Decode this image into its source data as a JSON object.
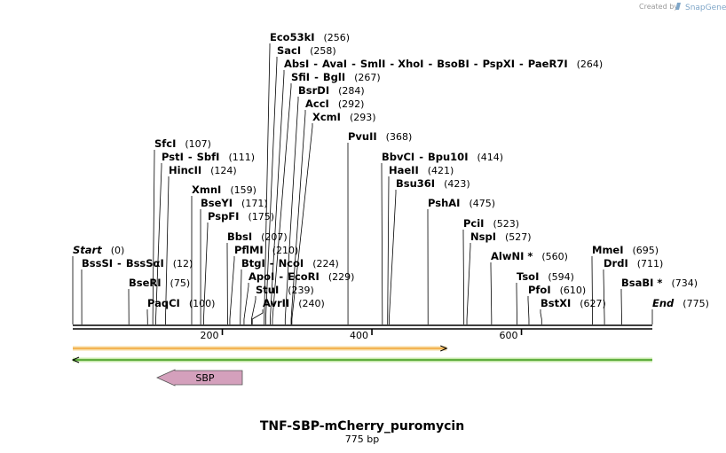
{
  "credit": {
    "prefix": "Created by",
    "brand": "SnapGene"
  },
  "title": "TNF-SBP-mCherry_puromycin",
  "subtitle": "775 bp",
  "sequence_length": 775,
  "ruler": {
    "ticks": [
      200,
      400,
      600
    ]
  },
  "features": [
    {
      "name": "SBP",
      "start": 120,
      "end": 230,
      "direction": "reverse",
      "color": "#d4a0bc"
    }
  ],
  "ranges": [
    {
      "name": "orange-range",
      "start": 1,
      "end": 500,
      "direction": "forward",
      "color": "#f2a73b",
      "fill": "#f7dca3"
    },
    {
      "name": "green-range",
      "start": 1,
      "end": 775,
      "direction": "reverse",
      "color": "#3e9a1e",
      "fill": "#c6e8a8"
    }
  ],
  "sites": [
    {
      "group": "start",
      "names": [
        "Start"
      ],
      "pos_label": "(0)",
      "cut": 0,
      "italic": true
    },
    {
      "group": "bsssi",
      "names": [
        "BssSI",
        "BssSαI"
      ],
      "pos_label": "(12)",
      "cut": 12
    },
    {
      "group": "bseri",
      "names": [
        "BseRI"
      ],
      "pos_label": "(75)",
      "cut": 75
    },
    {
      "group": "paqci",
      "names": [
        "PaqCI"
      ],
      "pos_label": "(100)",
      "cut": 100
    },
    {
      "group": "sfci",
      "names": [
        "SfcI"
      ],
      "pos_label": "(107)",
      "cut": 107
    },
    {
      "group": "psti",
      "names": [
        "PstI",
        "SbfI"
      ],
      "pos_label": "(111)",
      "cut": 111
    },
    {
      "group": "hincii",
      "names": [
        "HincII"
      ],
      "pos_label": "(124)",
      "cut": 124
    },
    {
      "group": "xmni",
      "names": [
        "XmnI"
      ],
      "pos_label": "(159)",
      "cut": 159
    },
    {
      "group": "bseyi",
      "names": [
        "BseYI"
      ],
      "pos_label": "(171)",
      "cut": 171
    },
    {
      "group": "pspfi",
      "names": [
        "PspFI"
      ],
      "pos_label": "(175)",
      "cut": 175
    },
    {
      "group": "bbsi",
      "names": [
        "BbsI"
      ],
      "pos_label": "(207)",
      "cut": 207
    },
    {
      "group": "pflmi",
      "names": [
        "PflMI"
      ],
      "pos_label": "(210)",
      "cut": 210
    },
    {
      "group": "btgi",
      "names": [
        "BtgI",
        "NcoI"
      ],
      "pos_label": "(224)",
      "cut": 224
    },
    {
      "group": "apoi",
      "names": [
        "ApoI",
        "EcoRI"
      ],
      "pos_label": "(229)",
      "cut": 229
    },
    {
      "group": "stui",
      "names": [
        "StuI"
      ],
      "pos_label": "(239)",
      "cut": 239
    },
    {
      "group": "avrii",
      "names": [
        "AvrII"
      ],
      "pos_label": "(240)",
      "cut": 240
    },
    {
      "group": "eco53ki",
      "names": [
        "Eco53kI"
      ],
      "pos_label": "(256)",
      "cut": 256
    },
    {
      "group": "saci",
      "names": [
        "SacI"
      ],
      "pos_label": "(258)",
      "cut": 258
    },
    {
      "group": "absi",
      "names": [
        "AbsI",
        "AvaI",
        "SmlI",
        "XhoI",
        "BsoBI",
        "PspXI",
        "PaeR7I"
      ],
      "pos_label": "(264)",
      "cut": 264
    },
    {
      "group": "sfii",
      "names": [
        "SfiI",
        "BglI"
      ],
      "pos_label": "(267)",
      "cut": 267
    },
    {
      "group": "bsrdi",
      "names": [
        "BsrDI"
      ],
      "pos_label": "(284)",
      "cut": 284
    },
    {
      "group": "acci",
      "names": [
        "AccI"
      ],
      "pos_label": "(292)",
      "cut": 292
    },
    {
      "group": "xcmi",
      "names": [
        "XcmI"
      ],
      "pos_label": "(293)",
      "cut": 293
    },
    {
      "group": "pvuii",
      "names": [
        "PvuII"
      ],
      "pos_label": "(368)",
      "cut": 368
    },
    {
      "group": "bbvci",
      "names": [
        "BbvCI",
        "Bpu10I"
      ],
      "pos_label": "(414)",
      "cut": 414
    },
    {
      "group": "haeii",
      "names": [
        "HaeII"
      ],
      "pos_label": "(421)",
      "cut": 421
    },
    {
      "group": "bsu36i",
      "names": [
        "Bsu36I"
      ],
      "pos_label": "(423)",
      "cut": 423
    },
    {
      "group": "pshai",
      "names": [
        "PshAI"
      ],
      "pos_label": "(475)",
      "cut": 475
    },
    {
      "group": "pcii",
      "names": [
        "PciI"
      ],
      "pos_label": "(523)",
      "cut": 523
    },
    {
      "group": "nspi",
      "names": [
        "NspI"
      ],
      "pos_label": "(527)",
      "cut": 527
    },
    {
      "group": "alwni",
      "names": [
        "AlwNI *"
      ],
      "pos_label": "(560)",
      "cut": 560
    },
    {
      "group": "tsoi",
      "names": [
        "TsoI"
      ],
      "pos_label": "(594)",
      "cut": 594
    },
    {
      "group": "pfoi",
      "names": [
        "PfoI"
      ],
      "pos_label": "(610)",
      "cut": 610
    },
    {
      "group": "bstxi",
      "names": [
        "BstXI"
      ],
      "pos_label": "(627)",
      "cut": 627
    },
    {
      "group": "mmei",
      "names": [
        "MmeI"
      ],
      "pos_label": "(695)",
      "cut": 695
    },
    {
      "group": "drdi",
      "names": [
        "DrdI"
      ],
      "pos_label": "(711)",
      "cut": 711
    },
    {
      "group": "bsabi",
      "names": [
        "BsaBI *"
      ],
      "pos_label": "(734)",
      "cut": 734
    },
    {
      "group": "end",
      "names": [
        "End"
      ],
      "pos_label": "(775)",
      "cut": 775,
      "italic": true
    }
  ]
}
